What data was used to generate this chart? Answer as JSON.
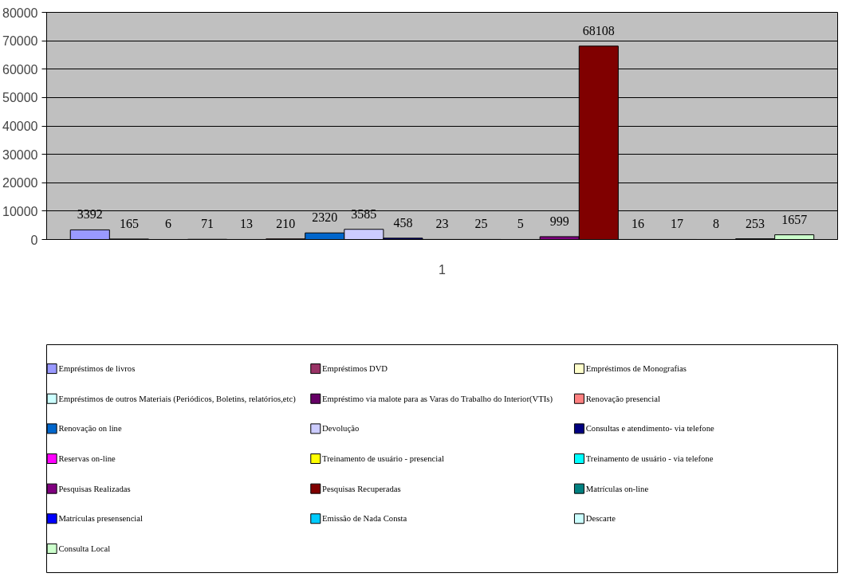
{
  "chart_data": {
    "type": "bar",
    "categories": [
      "1"
    ],
    "ylim": [
      0,
      80000
    ],
    "yticks": [
      0,
      10000,
      20000,
      30000,
      40000,
      50000,
      60000,
      70000,
      80000
    ],
    "grid": "y",
    "legend": "bottom",
    "data_labels": true,
    "series": [
      {
        "name": "Empréstimos de livros",
        "color": "#9999ff",
        "values": [
          3392
        ]
      },
      {
        "name": "Empréstimos DVD",
        "color": "#993366",
        "values": [
          165
        ]
      },
      {
        "name": "Empréstimos de Monografias",
        "color": "#ffffcc",
        "values": [
          6
        ]
      },
      {
        "name": "Empréstimos de outros Materiais (Periódicos, Boletins, relatórios,etc)",
        "color": "#ccffff",
        "values": [
          71
        ]
      },
      {
        "name": "Empréstimo via malote para as Varas do Trabalho do Interior(VTIs)",
        "color": "#660066",
        "values": [
          13
        ]
      },
      {
        "name": "Renovação presencial",
        "color": "#ff8080",
        "values": [
          210
        ]
      },
      {
        "name": "Renovação on line",
        "color": "#0066cc",
        "values": [
          2320
        ]
      },
      {
        "name": "Devolução",
        "color": "#ccccff",
        "values": [
          3585
        ]
      },
      {
        "name": "Consultas e atendimento- via telefone",
        "color": "#000080",
        "values": [
          458
        ]
      },
      {
        "name": "Reservas on-line",
        "color": "#ff00ff",
        "values": [
          23
        ]
      },
      {
        "name": "Treinamento de usuário - presencial",
        "color": "#ffff00",
        "values": [
          25
        ]
      },
      {
        "name": "Treinamento de usuário - via telefone",
        "color": "#00ffff",
        "values": [
          5
        ]
      },
      {
        "name": "Pesquisas Realizadas",
        "color": "#800080",
        "values": [
          999
        ]
      },
      {
        "name": "Pesquisas Recuperadas",
        "color": "#800000",
        "values": [
          68108
        ]
      },
      {
        "name": "Matrículas on-line",
        "color": "#008080",
        "values": [
          16
        ]
      },
      {
        "name": "Matrículas presensencial",
        "color": "#0000ff",
        "values": [
          17
        ]
      },
      {
        "name": "Emissão de Nada Consta",
        "color": "#00ccff",
        "values": [
          8
        ]
      },
      {
        "name": "Descarte",
        "color": "#ccffff",
        "values": [
          253
        ]
      },
      {
        "name": "Consulta Local",
        "color": "#ccffcc",
        "values": [
          1657
        ]
      }
    ]
  }
}
